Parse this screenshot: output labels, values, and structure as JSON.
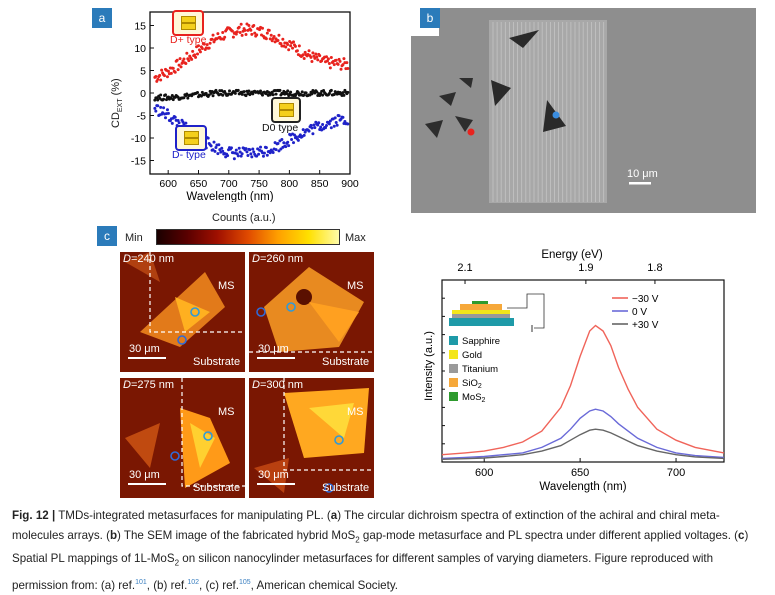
{
  "panels": {
    "a": "a",
    "b": "b",
    "c": "c"
  },
  "panel_a": {
    "ylabel": "CD",
    "ylabel_sub": "EXT",
    "ylabel_unit": " (%)",
    "xlabel": "Wavelength (nm)",
    "labels": {
      "d_plus": "D+ type",
      "d0": "D0 type",
      "d_minus": "D- type"
    },
    "colors": {
      "d_plus": "#e8231e",
      "d0": "#111111",
      "d_minus": "#1f22c9"
    }
  },
  "panel_b": {
    "scale_bar": "10 μm"
  },
  "panel_c": {
    "colorbar_title": "Counts (a.u.)",
    "colorbar_min": "Min",
    "colorbar_max": "Max",
    "tiles": [
      {
        "d_label": "D",
        "d_value": "=240 nm",
        "ms": "MS",
        "scale": "30 μm",
        "substrate": "Substrate"
      },
      {
        "d_label": "D",
        "d_value": "=260 nm",
        "ms": "MS",
        "scale": "30 μm",
        "substrate": "Substrate"
      },
      {
        "d_label": "D",
        "d_value": "=275 nm",
        "ms": "MS",
        "scale": "30 μm",
        "substrate": "Substrate"
      },
      {
        "d_label": "D",
        "d_value": "=300 nm",
        "ms": "MS",
        "scale": "30 μm",
        "substrate": "Substrate"
      }
    ]
  },
  "pl_spectra": {
    "top_axis_title": "Energy (eV)",
    "ylabel": "Intensity (a.u.)",
    "xlabel": "Wavelength (nm)",
    "legend": [
      {
        "label": "−30 V",
        "color": "#f0645a"
      },
      {
        "label": "0 V",
        "color": "#6a6ad8"
      },
      {
        "label": "+30 V",
        "color": "#666666"
      }
    ],
    "materials": [
      {
        "label": "Sapphire",
        "color": "#1e9aa8"
      },
      {
        "label": "Gold",
        "color": "#f3e61a"
      },
      {
        "label": "Titanium",
        "color": "#9a9a9a"
      },
      {
        "label": "SiO",
        "sub": "2",
        "color": "#f6a83a"
      },
      {
        "label": "MoS",
        "sub": "2",
        "color": "#2e9a2e"
      }
    ]
  },
  "chart_data": [
    {
      "type": "scatter",
      "title": "",
      "xlabel": "Wavelength (nm)",
      "ylabel": "CD_EXT (%)",
      "xlim": [
        570,
        900
      ],
      "ylim": [
        -18,
        18
      ],
      "xticks": [
        600,
        650,
        700,
        750,
        800,
        850,
        900
      ],
      "yticks": [
        -15,
        -10,
        -5,
        0,
        5,
        10,
        15
      ],
      "series": [
        {
          "name": "D+ type",
          "x": [
            580,
            600,
            620,
            640,
            660,
            680,
            700,
            720,
            740,
            760,
            780,
            800,
            820,
            840,
            860,
            880,
            895
          ],
          "values": [
            3.5,
            4.8,
            6.5,
            8.5,
            10.5,
            12.2,
            13.4,
            14.1,
            14.0,
            13.4,
            12.3,
            10.8,
            9.2,
            7.8,
            6.8,
            6.5,
            6.3
          ]
        },
        {
          "name": "D0 type",
          "x": [
            580,
            600,
            620,
            640,
            660,
            680,
            700,
            720,
            740,
            760,
            780,
            800,
            820,
            840,
            860,
            880,
            895
          ],
          "values": [
            -1,
            -1,
            -0.8,
            -0.5,
            -0.3,
            0,
            0,
            0,
            0,
            0,
            0,
            0,
            0,
            0,
            0,
            0,
            0
          ]
        },
        {
          "name": "D- type",
          "x": [
            580,
            600,
            620,
            640,
            660,
            680,
            700,
            720,
            740,
            760,
            780,
            800,
            820,
            840,
            860,
            880,
            895
          ],
          "values": [
            -3.5,
            -5.0,
            -7.0,
            -9.0,
            -10.8,
            -12.2,
            -13.2,
            -13.5,
            -13.4,
            -12.8,
            -11.8,
            -10.4,
            -9.0,
            -7.8,
            -6.8,
            -6.0,
            -5.8
          ]
        }
      ]
    },
    {
      "type": "line",
      "title": "",
      "xlabel": "Wavelength (nm)",
      "ylabel": "Intensity (a.u.)",
      "top_xlabel": "Energy (eV)",
      "xlim": [
        578,
        725
      ],
      "xticks": [
        600,
        650,
        700
      ],
      "top_ticks": [
        {
          "label": "2.1",
          "wavelength": 590
        },
        {
          "label": "1.9",
          "wavelength": 653
        },
        {
          "label": "1.8",
          "wavelength": 689
        }
      ],
      "ylim": [
        0,
        1
      ],
      "series": [
        {
          "name": "−30 V",
          "x": [
            578,
            590,
            600,
            610,
            620,
            630,
            640,
            645,
            650,
            655,
            658,
            662,
            666,
            670,
            675,
            680,
            690,
            700,
            710,
            725
          ],
          "values": [
            0.04,
            0.05,
            0.06,
            0.08,
            0.11,
            0.17,
            0.3,
            0.42,
            0.58,
            0.72,
            0.75,
            0.72,
            0.64,
            0.52,
            0.4,
            0.3,
            0.18,
            0.12,
            0.08,
            0.05
          ]
        },
        {
          "name": "0 V",
          "x": [
            578,
            590,
            600,
            610,
            620,
            630,
            640,
            645,
            650,
            655,
            658,
            662,
            666,
            670,
            675,
            680,
            690,
            700,
            710,
            725
          ],
          "values": [
            0.02,
            0.025,
            0.03,
            0.04,
            0.05,
            0.08,
            0.13,
            0.18,
            0.24,
            0.28,
            0.29,
            0.28,
            0.25,
            0.21,
            0.17,
            0.13,
            0.08,
            0.05,
            0.035,
            0.025
          ]
        },
        {
          "name": "+30 V",
          "x": [
            578,
            590,
            600,
            610,
            620,
            630,
            640,
            645,
            650,
            655,
            658,
            662,
            666,
            670,
            675,
            680,
            690,
            700,
            710,
            725
          ],
          "values": [
            0.015,
            0.018,
            0.022,
            0.03,
            0.04,
            0.06,
            0.09,
            0.12,
            0.15,
            0.175,
            0.18,
            0.175,
            0.16,
            0.14,
            0.115,
            0.09,
            0.06,
            0.04,
            0.028,
            0.02
          ]
        }
      ]
    }
  ],
  "caption": {
    "fig_label": "Fig. 12 |",
    "text_1": " TMDs-integrated metasurfaces for manipulating PL. (",
    "a": "a",
    "text_2": ") The circular dichroism spectra of extinction of the achiral and chiral meta-molecules arrays. (",
    "b": "b",
    "text_3": ") The SEM image of the fabricated hybrid MoS",
    "sub2": "2",
    "text_4": " gap-mode metasurface and PL spectra under different applied voltages. (",
    "c": "c",
    "text_5": ") Spatial PL mappings of 1L-MoS",
    "sub2b": "2",
    "text_6": " on silicon nanocylinder metasurfaces for different samples of varying diameters. Figure reproduced with permission from: (a) ref.",
    "ref_a": "101",
    "text_7": ", (b) ref.",
    "ref_b": "102",
    "text_8": ", (c) ref.",
    "ref_c": "105",
    "text_9": ", American chemical Society."
  }
}
